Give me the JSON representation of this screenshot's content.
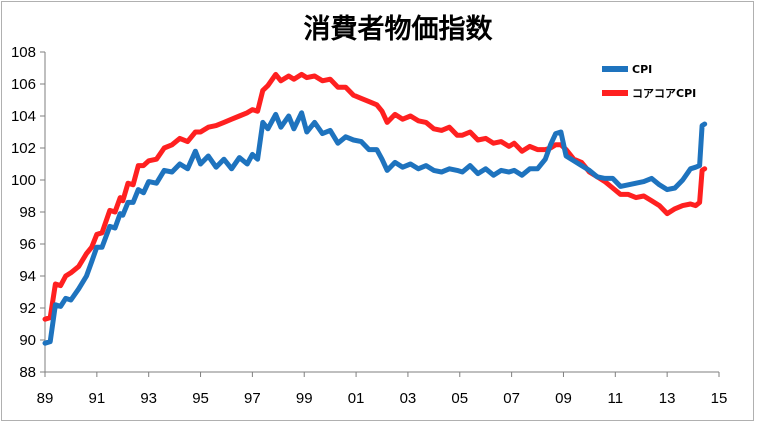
{
  "chart_data": {
    "type": "line",
    "title": "消費者物価指数",
    "xlabel": "",
    "ylabel": "",
    "xlim": [
      1989,
      2015
    ],
    "ylim": [
      88,
      108
    ],
    "x_tick_labels": [
      "89",
      "91",
      "93",
      "95",
      "97",
      "99",
      "01",
      "03",
      "05",
      "07",
      "09",
      "11",
      "13",
      "15"
    ],
    "y_tick_labels": [
      "88",
      "90",
      "92",
      "94",
      "96",
      "98",
      "100",
      "102",
      "104",
      "106",
      "108"
    ],
    "legend_position": "top-right",
    "grid": "none",
    "series": [
      {
        "name": "CPI",
        "color": "#1E73BE",
        "points": [
          [
            1989.0,
            89.8
          ],
          [
            1989.2,
            89.9
          ],
          [
            1989.4,
            92.2
          ],
          [
            1989.6,
            92.1
          ],
          [
            1989.8,
            92.6
          ],
          [
            1990.0,
            92.5
          ],
          [
            1990.3,
            93.2
          ],
          [
            1990.6,
            94.0
          ],
          [
            1990.8,
            94.9
          ],
          [
            1991.0,
            95.8
          ],
          [
            1991.2,
            95.8
          ],
          [
            1991.5,
            97.1
          ],
          [
            1991.7,
            97.0
          ],
          [
            1991.9,
            97.9
          ],
          [
            1992.0,
            97.8
          ],
          [
            1992.2,
            98.6
          ],
          [
            1992.4,
            98.6
          ],
          [
            1992.6,
            99.4
          ],
          [
            1992.8,
            99.2
          ],
          [
            1993.0,
            99.9
          ],
          [
            1993.3,
            99.8
          ],
          [
            1993.6,
            100.6
          ],
          [
            1993.9,
            100.5
          ],
          [
            1994.2,
            101.0
          ],
          [
            1994.5,
            100.7
          ],
          [
            1994.8,
            101.8
          ],
          [
            1995.0,
            101.0
          ],
          [
            1995.3,
            101.5
          ],
          [
            1995.6,
            100.8
          ],
          [
            1995.9,
            101.3
          ],
          [
            1996.2,
            100.7
          ],
          [
            1996.5,
            101.4
          ],
          [
            1996.8,
            101.0
          ],
          [
            1997.0,
            101.6
          ],
          [
            1997.2,
            101.3
          ],
          [
            1997.4,
            103.6
          ],
          [
            1997.6,
            103.2
          ],
          [
            1997.9,
            104.1
          ],
          [
            1998.1,
            103.3
          ],
          [
            1998.4,
            104.0
          ],
          [
            1998.6,
            103.2
          ],
          [
            1998.9,
            104.2
          ],
          [
            1999.1,
            103.0
          ],
          [
            1999.4,
            103.6
          ],
          [
            1999.7,
            102.9
          ],
          [
            2000.0,
            103.1
          ],
          [
            2000.3,
            102.3
          ],
          [
            2000.6,
            102.7
          ],
          [
            2000.9,
            102.5
          ],
          [
            2001.2,
            102.4
          ],
          [
            2001.5,
            101.9
          ],
          [
            2001.8,
            101.9
          ],
          [
            2002.0,
            101.3
          ],
          [
            2002.2,
            100.6
          ],
          [
            2002.5,
            101.1
          ],
          [
            2002.8,
            100.8
          ],
          [
            2003.1,
            101.0
          ],
          [
            2003.4,
            100.7
          ],
          [
            2003.7,
            100.9
          ],
          [
            2004.0,
            100.6
          ],
          [
            2004.3,
            100.5
          ],
          [
            2004.6,
            100.7
          ],
          [
            2004.9,
            100.6
          ],
          [
            2005.1,
            100.5
          ],
          [
            2005.4,
            100.9
          ],
          [
            2005.7,
            100.4
          ],
          [
            2006.0,
            100.7
          ],
          [
            2006.3,
            100.3
          ],
          [
            2006.6,
            100.6
          ],
          [
            2006.9,
            100.5
          ],
          [
            2007.1,
            100.6
          ],
          [
            2007.4,
            100.3
          ],
          [
            2007.7,
            100.7
          ],
          [
            2008.0,
            100.7
          ],
          [
            2008.3,
            101.3
          ],
          [
            2008.5,
            102.2
          ],
          [
            2008.7,
            102.9
          ],
          [
            2008.9,
            103.0
          ],
          [
            2009.1,
            101.5
          ],
          [
            2009.4,
            101.2
          ],
          [
            2009.7,
            100.9
          ],
          [
            2010.0,
            100.6
          ],
          [
            2010.3,
            100.2
          ],
          [
            2010.6,
            100.1
          ],
          [
            2010.9,
            100.1
          ],
          [
            2011.2,
            99.6
          ],
          [
            2011.5,
            99.7
          ],
          [
            2011.8,
            99.8
          ],
          [
            2012.1,
            99.9
          ],
          [
            2012.4,
            100.1
          ],
          [
            2012.7,
            99.7
          ],
          [
            2013.0,
            99.4
          ],
          [
            2013.3,
            99.5
          ],
          [
            2013.6,
            100.0
          ],
          [
            2013.9,
            100.7
          ],
          [
            2014.1,
            100.8
          ],
          [
            2014.25,
            100.9
          ],
          [
            2014.35,
            103.4
          ],
          [
            2014.45,
            103.5
          ]
        ]
      },
      {
        "name": "コアコアCPI",
        "color": "#FF2020",
        "points": [
          [
            1989.0,
            91.3
          ],
          [
            1989.2,
            91.4
          ],
          [
            1989.4,
            93.5
          ],
          [
            1989.6,
            93.4
          ],
          [
            1989.8,
            94.0
          ],
          [
            1990.0,
            94.2
          ],
          [
            1990.3,
            94.6
          ],
          [
            1990.6,
            95.4
          ],
          [
            1990.8,
            95.8
          ],
          [
            1991.0,
            96.6
          ],
          [
            1991.2,
            96.7
          ],
          [
            1991.5,
            98.1
          ],
          [
            1991.7,
            98.0
          ],
          [
            1991.9,
            98.9
          ],
          [
            1992.0,
            98.7
          ],
          [
            1992.2,
            99.8
          ],
          [
            1992.4,
            99.7
          ],
          [
            1992.6,
            100.9
          ],
          [
            1992.8,
            100.9
          ],
          [
            1993.0,
            101.2
          ],
          [
            1993.3,
            101.3
          ],
          [
            1993.6,
            102.0
          ],
          [
            1993.9,
            102.2
          ],
          [
            1994.2,
            102.6
          ],
          [
            1994.5,
            102.4
          ],
          [
            1994.8,
            103.0
          ],
          [
            1995.0,
            103.0
          ],
          [
            1995.3,
            103.3
          ],
          [
            1995.6,
            103.4
          ],
          [
            1995.9,
            103.6
          ],
          [
            1996.2,
            103.8
          ],
          [
            1996.5,
            104.0
          ],
          [
            1996.8,
            104.2
          ],
          [
            1997.0,
            104.4
          ],
          [
            1997.2,
            104.3
          ],
          [
            1997.4,
            105.6
          ],
          [
            1997.6,
            105.9
          ],
          [
            1997.9,
            106.6
          ],
          [
            1998.1,
            106.2
          ],
          [
            1998.4,
            106.5
          ],
          [
            1998.6,
            106.3
          ],
          [
            1998.9,
            106.6
          ],
          [
            1999.1,
            106.4
          ],
          [
            1999.4,
            106.5
          ],
          [
            1999.7,
            106.2
          ],
          [
            2000.0,
            106.3
          ],
          [
            2000.3,
            105.8
          ],
          [
            2000.6,
            105.8
          ],
          [
            2000.9,
            105.3
          ],
          [
            2001.2,
            105.1
          ],
          [
            2001.5,
            104.9
          ],
          [
            2001.8,
            104.7
          ],
          [
            2002.0,
            104.3
          ],
          [
            2002.2,
            103.6
          ],
          [
            2002.5,
            104.1
          ],
          [
            2002.8,
            103.8
          ],
          [
            2003.1,
            104.0
          ],
          [
            2003.4,
            103.7
          ],
          [
            2003.7,
            103.6
          ],
          [
            2004.0,
            103.2
          ],
          [
            2004.3,
            103.1
          ],
          [
            2004.6,
            103.3
          ],
          [
            2004.9,
            102.8
          ],
          [
            2005.1,
            102.8
          ],
          [
            2005.4,
            103.0
          ],
          [
            2005.7,
            102.5
          ],
          [
            2006.0,
            102.6
          ],
          [
            2006.3,
            102.3
          ],
          [
            2006.6,
            102.4
          ],
          [
            2006.9,
            102.1
          ],
          [
            2007.1,
            102.3
          ],
          [
            2007.4,
            101.8
          ],
          [
            2007.7,
            102.1
          ],
          [
            2008.0,
            101.9
          ],
          [
            2008.3,
            101.9
          ],
          [
            2008.5,
            102.0
          ],
          [
            2008.7,
            102.2
          ],
          [
            2008.9,
            102.2
          ],
          [
            2009.1,
            101.9
          ],
          [
            2009.4,
            101.3
          ],
          [
            2009.7,
            101.1
          ],
          [
            2010.0,
            100.5
          ],
          [
            2010.3,
            100.2
          ],
          [
            2010.6,
            99.9
          ],
          [
            2010.9,
            99.5
          ],
          [
            2011.2,
            99.1
          ],
          [
            2011.5,
            99.1
          ],
          [
            2011.8,
            98.9
          ],
          [
            2012.1,
            99.0
          ],
          [
            2012.4,
            98.7
          ],
          [
            2012.7,
            98.4
          ],
          [
            2013.0,
            97.9
          ],
          [
            2013.3,
            98.2
          ],
          [
            2013.6,
            98.4
          ],
          [
            2013.9,
            98.5
          ],
          [
            2014.1,
            98.4
          ],
          [
            2014.25,
            98.6
          ],
          [
            2014.35,
            100.6
          ],
          [
            2014.45,
            100.7
          ]
        ]
      }
    ]
  }
}
